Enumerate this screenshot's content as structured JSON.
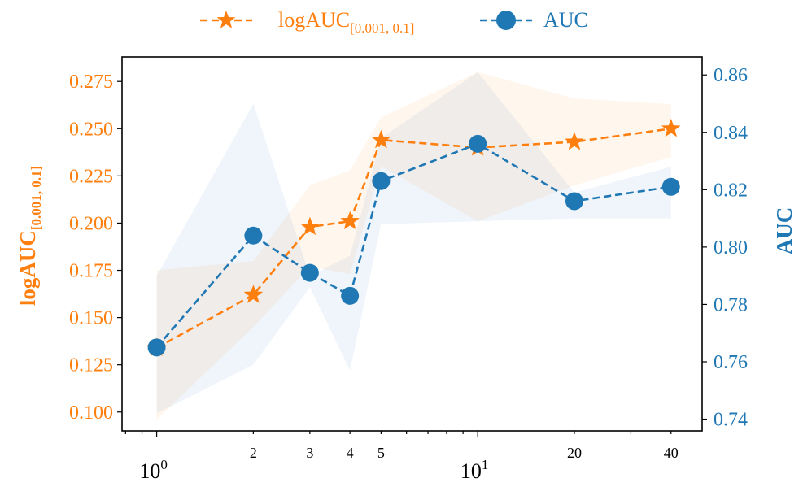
{
  "colors": {
    "orange": "#ff7f0e",
    "blue": "#1f77b4",
    "axis": "#000000"
  },
  "chart_data": {
    "type": "line",
    "x_scale": "log",
    "x": [
      1,
      2,
      3,
      4,
      5,
      10,
      20,
      40
    ],
    "x_tick_labels": [
      {
        "value": 1,
        "base": "10",
        "exp": "0"
      },
      {
        "value": 2,
        "text": "2"
      },
      {
        "value": 3,
        "text": "3"
      },
      {
        "value": 4,
        "text": "4"
      },
      {
        "value": 5,
        "text": "5"
      },
      {
        "value": 10,
        "base": "10",
        "exp": "1"
      },
      {
        "value": 20,
        "text": "20"
      },
      {
        "value": 40,
        "text": "40"
      }
    ],
    "xlim": [
      0.78,
      50
    ],
    "legend": {
      "placement": "top-center",
      "entries": [
        {
          "series": "logAUC",
          "label_main": "logAUC",
          "label_sub": "[0.001, 0.1]",
          "marker": "star",
          "color": "#ff7f0e"
        },
        {
          "series": "AUC",
          "label_main": "AUC",
          "label_sub": "",
          "marker": "circle",
          "color": "#1f77b4"
        }
      ]
    },
    "y_left": {
      "label_main": "logAUC",
      "label_sub": "[0.001, 0.1]",
      "ylim": [
        0.09,
        0.288
      ],
      "ticks": [
        "0.100",
        "0.125",
        "0.150",
        "0.175",
        "0.200",
        "0.225",
        "0.250",
        "0.275"
      ],
      "color": "#ff7f0e"
    },
    "y_right": {
      "label": "AUC",
      "ylim": [
        0.7359,
        0.8663
      ],
      "ticks": [
        "0.74",
        "0.76",
        "0.78",
        "0.80",
        "0.82",
        "0.84",
        "0.86"
      ],
      "color": "#1f77b4"
    },
    "series": [
      {
        "name": "logAUC",
        "axis": "left",
        "marker": "star",
        "color": "#ff7f0e",
        "values": [
          0.134,
          0.162,
          0.198,
          0.201,
          0.244,
          0.24,
          0.243,
          0.25
        ],
        "band_upper": [
          0.175,
          0.18,
          0.22,
          0.228,
          0.256,
          0.28,
          0.266,
          0.263
        ],
        "band_lower": [
          0.096,
          0.145,
          0.177,
          0.173,
          0.23,
          0.201,
          0.22,
          0.235
        ]
      },
      {
        "name": "AUC",
        "axis": "right",
        "marker": "circle",
        "color": "#1f77b4",
        "values": [
          0.765,
          0.804,
          0.791,
          0.783,
          0.823,
          0.836,
          0.816,
          0.821
        ],
        "band_upper": [
          0.79,
          0.85,
          0.79,
          0.797,
          0.838,
          0.861,
          0.819,
          0.828
        ],
        "band_lower": [
          0.742,
          0.759,
          0.786,
          0.757,
          0.808,
          0.809,
          0.81,
          0.81
        ]
      }
    ],
    "grid": false
  }
}
